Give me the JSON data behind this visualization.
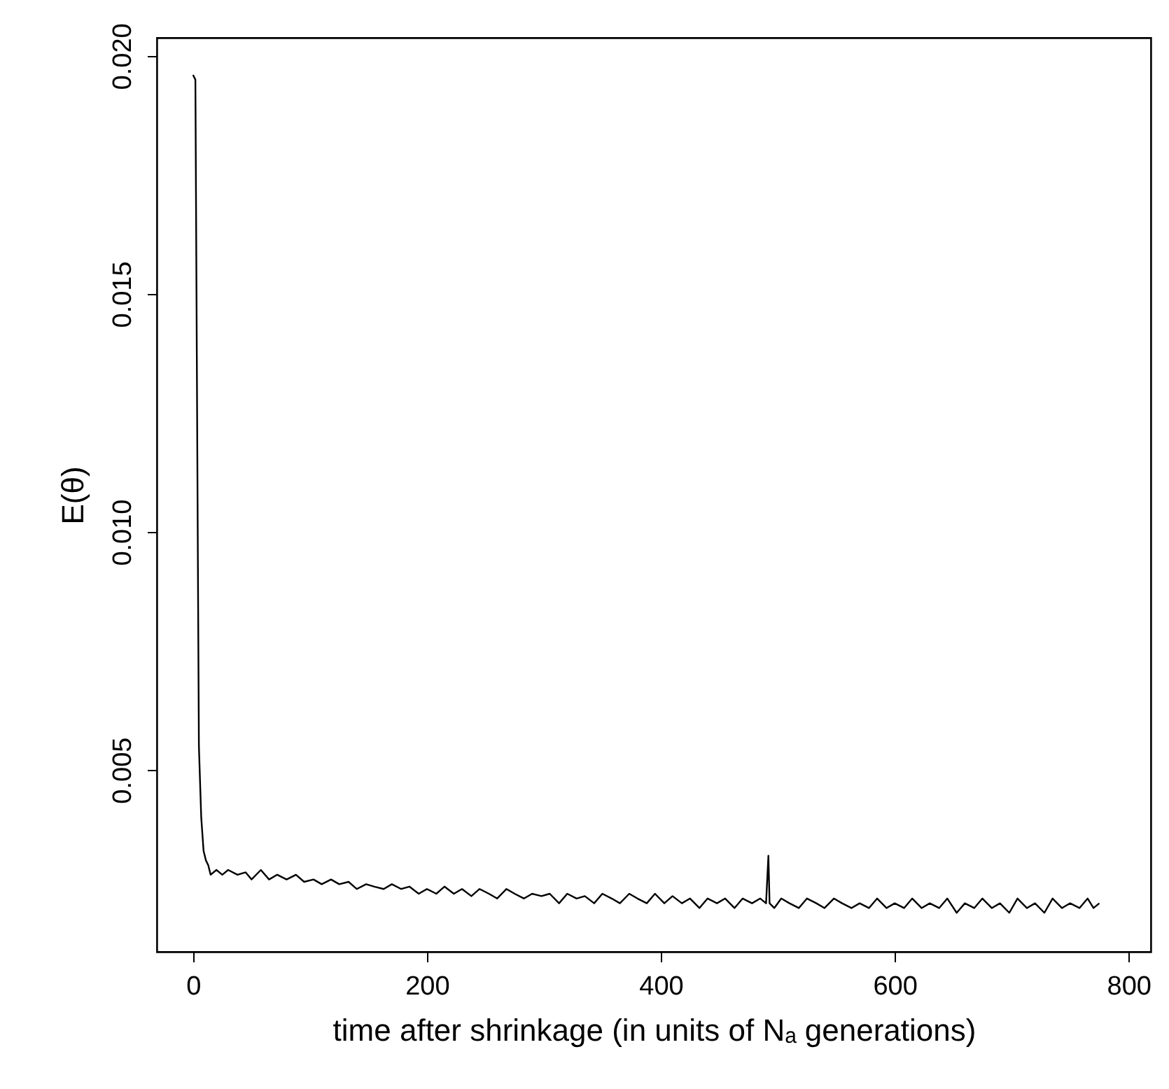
{
  "chart_data": {
    "type": "line",
    "xlabel": "time after shrinkage (in units of Nₐ generations)",
    "ylabel": "E(θ)",
    "xlim": [
      -31,
      819
    ],
    "xticks": [
      0,
      200,
      400,
      600,
      800
    ],
    "ylim": [
      0.00118,
      0.02038
    ],
    "yticks": [
      {
        "value": 0.005,
        "label": "0.005"
      },
      {
        "value": 0.01,
        "label": "0.010"
      },
      {
        "value": 0.015,
        "label": "0.015"
      },
      {
        "value": 0.02,
        "label": "0.020"
      }
    ],
    "grid": false,
    "marker": "none",
    "line_style": "solid",
    "series": [
      {
        "color": "#000000",
        "x": [
          0,
          2,
          4,
          5,
          7,
          9,
          11,
          13,
          15,
          20,
          25,
          30,
          38,
          45,
          50,
          58,
          65,
          72,
          80,
          88,
          95,
          103,
          110,
          118,
          125,
          133,
          140,
          148,
          155,
          163,
          170,
          178,
          185,
          193,
          200,
          208,
          215,
          223,
          230,
          238,
          245,
          253,
          260,
          268,
          275,
          283,
          290,
          298,
          305,
          313,
          320,
          328,
          335,
          343,
          350,
          358,
          365,
          373,
          380,
          388,
          395,
          403,
          410,
          418,
          425,
          433,
          440,
          448,
          455,
          463,
          470,
          478,
          485,
          490,
          492,
          493,
          497,
          503,
          510,
          518,
          525,
          533,
          540,
          548,
          555,
          563,
          570,
          578,
          585,
          593,
          600,
          608,
          615,
          623,
          630,
          638,
          645,
          653,
          660,
          668,
          675,
          683,
          690,
          698,
          705,
          713,
          720,
          728,
          735,
          743,
          750,
          758,
          765,
          770,
          775
        ],
        "values": [
          0.0196,
          0.0195,
          0.01,
          0.0055,
          0.004,
          0.0033,
          0.0031,
          0.003,
          0.0028,
          0.0029,
          0.0028,
          0.0029,
          0.0028,
          0.00285,
          0.0027,
          0.0029,
          0.0027,
          0.0028,
          0.0027,
          0.0028,
          0.00265,
          0.0027,
          0.0026,
          0.0027,
          0.0026,
          0.00265,
          0.0025,
          0.0026,
          0.00255,
          0.0025,
          0.0026,
          0.0025,
          0.00255,
          0.0024,
          0.0025,
          0.0024,
          0.00255,
          0.0024,
          0.0025,
          0.00235,
          0.0025,
          0.0024,
          0.0023,
          0.0025,
          0.0024,
          0.0023,
          0.0024,
          0.00235,
          0.0024,
          0.0022,
          0.0024,
          0.0023,
          0.00235,
          0.0022,
          0.0024,
          0.0023,
          0.0022,
          0.0024,
          0.0023,
          0.0022,
          0.0024,
          0.0022,
          0.00235,
          0.0022,
          0.0023,
          0.0021,
          0.0023,
          0.0022,
          0.0023,
          0.0021,
          0.0023,
          0.0022,
          0.0023,
          0.0022,
          0.0032,
          0.0022,
          0.0021,
          0.0023,
          0.0022,
          0.0021,
          0.0023,
          0.0022,
          0.0021,
          0.0023,
          0.0022,
          0.0021,
          0.0022,
          0.0021,
          0.0023,
          0.0021,
          0.0022,
          0.0021,
          0.0023,
          0.0021,
          0.0022,
          0.0021,
          0.0023,
          0.002,
          0.0022,
          0.0021,
          0.0023,
          0.0021,
          0.0022,
          0.002,
          0.0023,
          0.0021,
          0.0022,
          0.002,
          0.0023,
          0.0021,
          0.0022,
          0.0021,
          0.0023,
          0.0021,
          0.0022
        ]
      }
    ]
  }
}
